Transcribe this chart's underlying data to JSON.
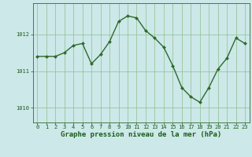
{
  "x": [
    0,
    1,
    2,
    3,
    4,
    5,
    6,
    7,
    8,
    9,
    10,
    11,
    12,
    13,
    14,
    15,
    16,
    17,
    18,
    19,
    20,
    21,
    22,
    23
  ],
  "y": [
    1011.4,
    1011.4,
    1011.4,
    1011.5,
    1011.7,
    1011.75,
    1011.2,
    1011.45,
    1011.8,
    1012.35,
    1012.5,
    1012.45,
    1012.1,
    1011.9,
    1011.65,
    1011.15,
    1010.55,
    1010.3,
    1010.15,
    1010.55,
    1011.05,
    1011.35,
    1011.9,
    1011.75
  ],
  "line_color": "#2d6a2d",
  "marker": "D",
  "marker_size": 2.0,
  "line_width": 1.0,
  "bg_color": "#cce8e8",
  "grid_color": "#8fbf8f",
  "axis_color": "#2d6a2d",
  "xlabel": "Graphe pression niveau de la mer (hPa)",
  "xlabel_fontsize": 6.5,
  "xlabel_color": "#1a5c1a",
  "xlabel_weight": "bold",
  "tick_color": "#1a5c1a",
  "tick_fontsize": 5.0,
  "yticks": [
    1010,
    1011,
    1012
  ],
  "ylim": [
    1009.6,
    1012.85
  ],
  "xlim": [
    -0.5,
    23.5
  ],
  "figsize": [
    3.2,
    2.0
  ],
  "dpi": 100
}
